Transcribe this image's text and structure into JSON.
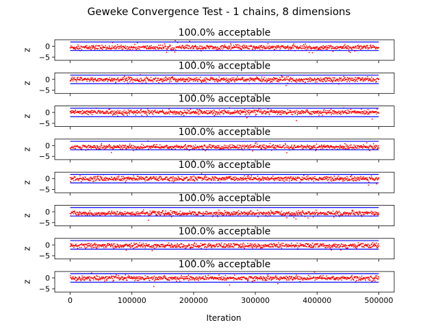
{
  "suptitle": "Geweke Convergence Test - 1 chains, 8 dimensions",
  "xlabel": "Iteration",
  "ylabel": "z",
  "colors": {
    "points": "#ff0000",
    "bounds": "#0000ff",
    "axes": "#000000"
  },
  "chart_data": {
    "type": "scatter",
    "x_range": [
      0,
      500000
    ],
    "xlim": [
      -25000,
      525000
    ],
    "ylim": [
      -6.5,
      3.0
    ],
    "x_ticks": [
      0,
      100000,
      200000,
      300000,
      400000,
      500000
    ],
    "x_tick_labels": [
      "0",
      "100000",
      "200000",
      "300000",
      "400000",
      "500000"
    ],
    "y_ticks": [
      0,
      -5
    ],
    "y_tick_labels": [
      "0",
      "−5"
    ],
    "bounds": [
      -1.96,
      1.96
    ],
    "panels": [
      {
        "title": "100.0% acceptable",
        "acceptable_percent": 100.0,
        "center": -0.6
      },
      {
        "title": "100.0% acceptable",
        "acceptable_percent": 100.0,
        "center": -0.1
      },
      {
        "title": "100.0% acceptable",
        "acceptable_percent": 100.0,
        "center": 0.1
      },
      {
        "title": "100.0% acceptable",
        "acceptable_percent": 100.0,
        "center": -0.7
      },
      {
        "title": "100.0% acceptable",
        "acceptable_percent": 100.0,
        "center": 0.0
      },
      {
        "title": "100.0% acceptable",
        "acceptable_percent": 100.0,
        "center": -0.8
      },
      {
        "title": "100.0% acceptable",
        "acceptable_percent": 100.0,
        "center": -0.4
      },
      {
        "title": "100.0% acceptable",
        "acceptable_percent": 100.0,
        "center": -0.1
      }
    ]
  }
}
